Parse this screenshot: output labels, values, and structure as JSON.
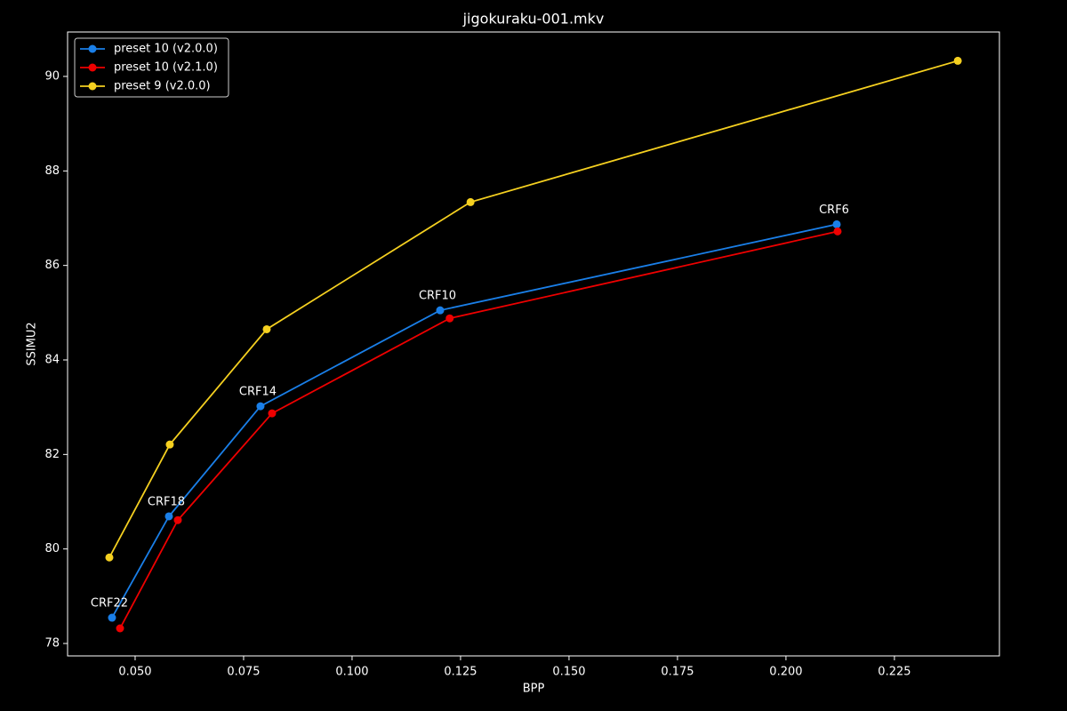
{
  "chart_data": {
    "type": "line",
    "title": "jigokuraku-001.mkv",
    "x_label": "BPP",
    "y_label": "SSIMU2",
    "series": [
      {
        "name": "preset 10 (v2.0.0)",
        "color": "#1a7fe8",
        "x": [
          0.04467,
          0.05779,
          0.07889,
          0.1203,
          0.2117
        ],
        "values": [
          78.545,
          80.69,
          83.02,
          85.05,
          86.87
        ],
        "labels": [
          "CRF22",
          "CRF18",
          "CRF14",
          "CRF10",
          "CRF6"
        ]
      },
      {
        "name": "preset 10 (v2.1.0)",
        "color": "#ee0000",
        "x": [
          0.04652,
          0.05984,
          0.08156,
          0.1225,
          0.2119
        ],
        "values": [
          78.32,
          80.61,
          82.87,
          84.88,
          86.72
        ]
      },
      {
        "name": "preset 9 (v2.0.0)",
        "color": "#f5d020",
        "x": [
          0.04406,
          0.05799,
          0.08033,
          0.1273,
          0.2396
        ],
        "values": [
          79.82,
          82.21,
          84.65,
          87.34,
          90.33
        ]
      }
    ],
    "xlim": [
      0.03443,
      0.2492
    ],
    "ylim": [
      77.737,
      90.94
    ],
    "xticks": [
      {
        "value": 0.05,
        "label": "0.050"
      },
      {
        "value": 0.075,
        "label": "0.075"
      },
      {
        "value": 0.1,
        "label": "0.100"
      },
      {
        "value": 0.125,
        "label": "0.125"
      },
      {
        "value": 0.15,
        "label": "0.150"
      },
      {
        "value": 0.175,
        "label": "0.175"
      },
      {
        "value": 0.2,
        "label": "0.200"
      },
      {
        "value": 0.225,
        "label": "0.225"
      }
    ],
    "yticks": [
      78,
      80,
      82,
      84,
      86,
      88,
      90
    ],
    "legend": "upper-left",
    "grid": false
  }
}
